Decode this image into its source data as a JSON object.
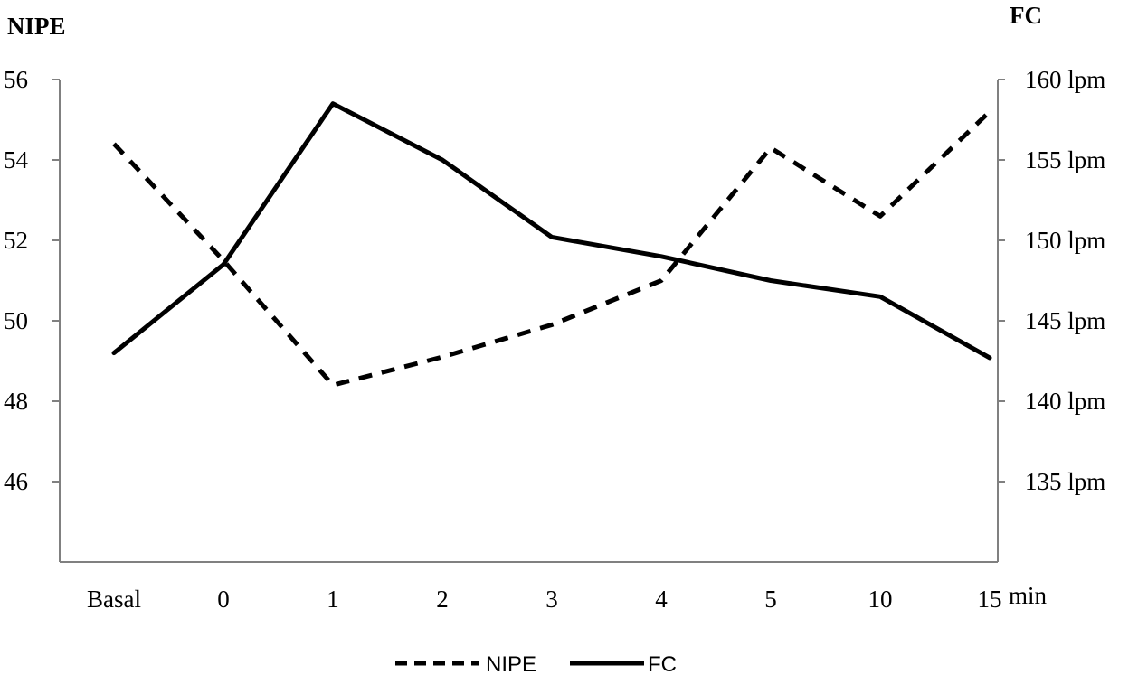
{
  "chart_data": {
    "type": "line",
    "left_axis_title": "NIPE",
    "right_axis_title": "FC",
    "x_unit_label": "min",
    "categories": [
      "Basal",
      "0",
      "1",
      "2",
      "3",
      "4",
      "5",
      "10",
      "15"
    ],
    "left_axis": {
      "ylim": [
        44,
        56
      ],
      "ticks": [
        46,
        48,
        50,
        52,
        54,
        56
      ],
      "tick_labels": [
        "46",
        "48",
        "50",
        "52",
        "54",
        "56"
      ]
    },
    "right_axis": {
      "ylim": [
        130,
        160
      ],
      "ticks": [
        135,
        140,
        145,
        150,
        155,
        160
      ],
      "tick_labels": [
        "135 lpm",
        "140 lpm",
        "145 lpm",
        "150 lpm",
        "155 lpm",
        "160 lpm"
      ]
    },
    "series": [
      {
        "name": "NIPE",
        "axis": "left",
        "style": "dashed",
        "color": "#000000",
        "values": [
          54.4,
          51.5,
          48.4,
          49.1,
          49.9,
          51.0,
          54.3,
          52.6,
          55.2
        ]
      },
      {
        "name": "FC",
        "axis": "right",
        "style": "solid",
        "color": "#000000",
        "values": [
          143,
          148.5,
          158.5,
          155,
          150.2,
          149,
          147.5,
          146.5,
          142.7
        ]
      }
    ],
    "grid": false,
    "legend_position": "bottom-center"
  }
}
